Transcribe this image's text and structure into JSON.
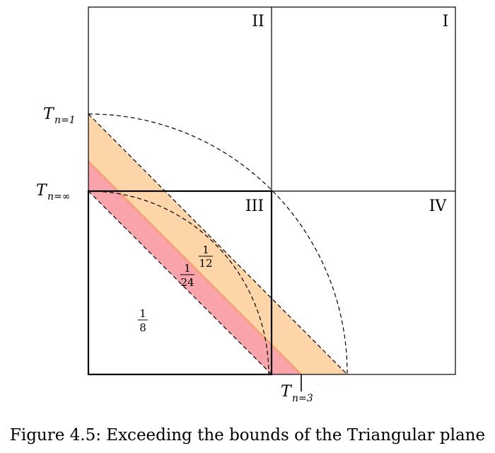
{
  "quadrants": [
    "II",
    "I",
    "III",
    "IV"
  ],
  "fractions": {
    "f12": {
      "num": "1",
      "den": "12"
    },
    "f24": {
      "num": "1",
      "den": "24"
    },
    "f8": {
      "num": "1",
      "den": "8"
    }
  },
  "labels": {
    "t1": {
      "base": "T",
      "sub": "n=1"
    },
    "tinf": {
      "base": "T",
      "sub": "n=∞"
    },
    "t3": {
      "base": "T",
      "sub": "n=3"
    }
  },
  "colors": {
    "orange_band": "#fdd5a9",
    "pink_band": "#f9a3ab",
    "band_edge": "#f5a070"
  },
  "caption": "Figure 4.5: Exceeding the bounds of the Triangular plane"
}
